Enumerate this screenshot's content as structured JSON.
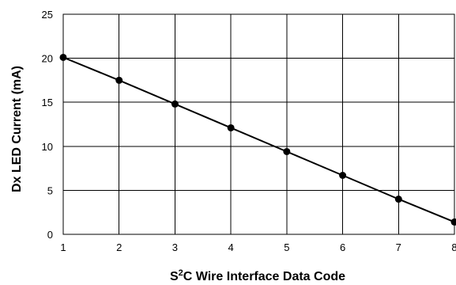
{
  "chart_data": {
    "type": "line",
    "xlabel_main": "S",
    "xlabel_sup": "2",
    "xlabel_rest": "C Wire Interface Data Code",
    "ylabel": "Dx LED Current (mA)",
    "xlim": [
      1,
      8
    ],
    "ylim": [
      0,
      25
    ],
    "x_ticks": [
      "1",
      "2",
      "3",
      "4",
      "5",
      "6",
      "7",
      "8"
    ],
    "y_ticks": [
      "0",
      "5",
      "10",
      "15",
      "20",
      "25"
    ],
    "grid": true,
    "legend": "none",
    "series": [
      {
        "x": [
          1,
          2,
          3,
          4,
          5,
          6,
          7,
          8
        ],
        "y": [
          20.1,
          17.5,
          14.8,
          12.1,
          9.4,
          6.7,
          4.0,
          1.4
        ]
      }
    ]
  }
}
